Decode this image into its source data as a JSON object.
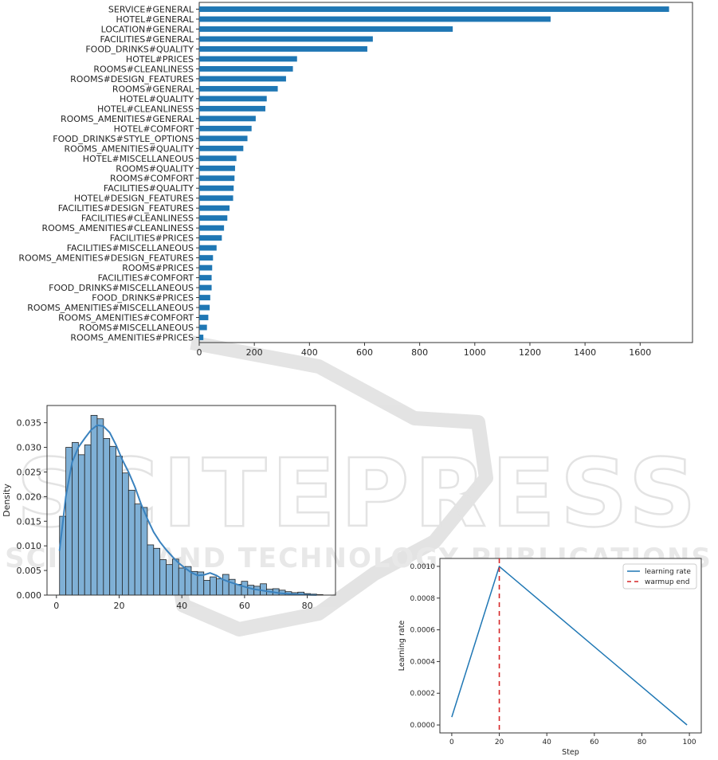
{
  "watermark": {
    "title": "SCITEPRESS",
    "subtitle": "SCIENCE AND TECHNOLOGY PUBLICATIONS"
  },
  "chart_data": [
    {
      "type": "bar",
      "orientation": "horizontal",
      "categories": [
        "SERVICE#GENERAL",
        "HOTEL#GENERAL",
        "LOCATION#GENERAL",
        "FACILITIES#GENERAL",
        "FOOD_DRINKS#QUALITY",
        "HOTEL#PRICES",
        "ROOMS#CLEANLINESS",
        "ROOMS#DESIGN_FEATURES",
        "ROOMS#GENERAL",
        "HOTEL#QUALITY",
        "HOTEL#CLEANLINESS",
        "ROOMS_AMENITIES#GENERAL",
        "HOTEL#COMFORT",
        "FOOD_DRINKS#STYLE_OPTIONS",
        "ROOMS_AMENITIES#QUALITY",
        "HOTEL#MISCELLANEOUS",
        "ROOMS#QUALITY",
        "ROOMS#COMFORT",
        "FACILITIES#QUALITY",
        "HOTEL#DESIGN_FEATURES",
        "FACILITIES#DESIGN_FEATURES",
        "FACILITIES#CLEANLINESS",
        "ROOMS_AMENITIES#CLEANLINESS",
        "FACILITIES#PRICES",
        "FACILITIES#MISCELLANEOUS",
        "ROOMS_AMENITIES#DESIGN_FEATURES",
        "ROOMS#PRICES",
        "FACILITIES#COMFORT",
        "FOOD_DRINKS#MISCELLANEOUS",
        "FOOD_DRINKS#PRICES",
        "ROOMS_AMENITIES#MISCELLANEOUS",
        "ROOMS_AMENITIES#COMFORT",
        "ROOMS#MISCELLANEOUS",
        "ROOMS_AMENITIES#PRICES"
      ],
      "values": [
        1705,
        1275,
        920,
        630,
        610,
        355,
        340,
        315,
        285,
        245,
        240,
        205,
        190,
        175,
        160,
        135,
        130,
        128,
        125,
        123,
        110,
        102,
        90,
        82,
        63,
        50,
        47,
        45,
        45,
        40,
        38,
        33,
        28,
        15
      ],
      "xticks": [
        0,
        200,
        400,
        600,
        800,
        1000,
        1200,
        1400,
        1600
      ],
      "xlim": [
        0,
        1790
      ],
      "color": "#1f77b4",
      "xlabel": "",
      "ylabel": "",
      "title": ""
    },
    {
      "type": "histogram",
      "bin_width": 2,
      "x_start": 1,
      "density": [
        0.016,
        0.03,
        0.031,
        0.0285,
        0.0305,
        0.0365,
        0.0358,
        0.0318,
        0.0302,
        0.0282,
        0.0248,
        0.0213,
        0.0185,
        0.0178,
        0.0102,
        0.0095,
        0.0072,
        0.0062,
        0.0073,
        0.0055,
        0.0058,
        0.0048,
        0.0047,
        0.003,
        0.0037,
        0.0033,
        0.0042,
        0.0032,
        0.0022,
        0.0028,
        0.002,
        0.0018,
        0.0023,
        0.0012,
        0.0013,
        0.001,
        0.0007,
        0.0005,
        0.0006,
        0.0003,
        0.0002,
        0.0001
      ],
      "kde": {
        "x": [
          1,
          3,
          5,
          7,
          9,
          11,
          13,
          15,
          17,
          19,
          21,
          23,
          25,
          27,
          29,
          31,
          33,
          35,
          37,
          39,
          41,
          43,
          45,
          47,
          49,
          51,
          53,
          55,
          57,
          59,
          61,
          63,
          65,
          67,
          69,
          71,
          73,
          75,
          77,
          79,
          81,
          83
        ],
        "y": [
          0.009,
          0.02,
          0.027,
          0.03,
          0.0318,
          0.0335,
          0.0345,
          0.0343,
          0.033,
          0.0305,
          0.0275,
          0.025,
          0.022,
          0.0185,
          0.0155,
          0.0128,
          0.0108,
          0.0092,
          0.0078,
          0.0065,
          0.0055,
          0.0046,
          0.004,
          0.0041,
          0.0045,
          0.004,
          0.0032,
          0.0027,
          0.0023,
          0.0019,
          0.0015,
          0.0012,
          0.001,
          0.0008,
          0.0006,
          0.0004,
          0.0003,
          0.0002,
          0.00015,
          0.0001,
          5e-05,
          2e-05
        ]
      },
      "ylabel": "Density",
      "xticks": [
        0,
        20,
        40,
        60,
        80
      ],
      "yticks": [
        0.0,
        0.005,
        0.01,
        0.015,
        0.02,
        0.025,
        0.03,
        0.035
      ],
      "ytick_labels": [
        "0.000",
        "0.005",
        "0.010",
        "0.015",
        "0.020",
        "0.025",
        "0.030",
        "0.035"
      ],
      "xlim": [
        -3,
        89
      ],
      "ylim": [
        0,
        0.0385
      ],
      "fill_color": "#7fb0d6",
      "line_color": "#3a82be"
    },
    {
      "type": "line",
      "xlabel": "Step",
      "ylabel": "Learning rate",
      "xlim": [
        -5,
        105
      ],
      "ylim": [
        -5e-05,
        0.00105
      ],
      "xticks": [
        0,
        20,
        40,
        60,
        80,
        100
      ],
      "yticks": [
        0.0,
        0.0002,
        0.0004,
        0.0006,
        0.0008,
        0.001
      ],
      "ytick_labels": [
        "0.0000",
        "0.0002",
        "0.0004",
        "0.0006",
        "0.0008",
        "0.0010"
      ],
      "series": [
        {
          "name": "learning rate",
          "color": "#1f77b4",
          "x": [
            0,
            20,
            99
          ],
          "y": [
            5e-05,
            0.001,
            0.0
          ]
        }
      ],
      "vline": {
        "name": "warmup end",
        "x": 20,
        "color": "#d62728"
      },
      "legend": "top-right"
    }
  ]
}
